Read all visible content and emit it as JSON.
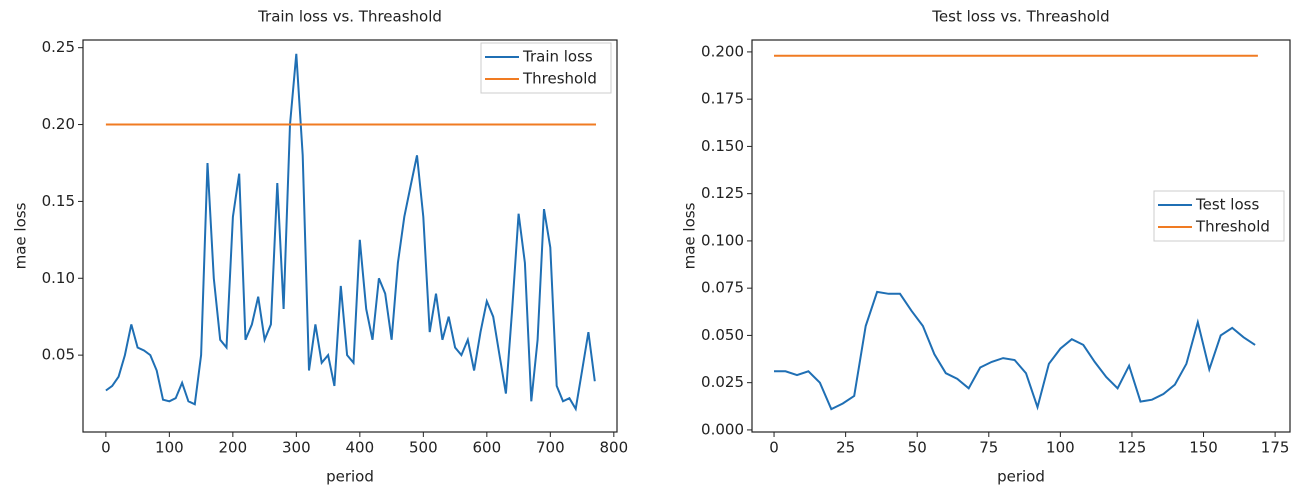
{
  "chart_data": [
    {
      "type": "line",
      "title": "Train loss vs. Threashold",
      "xlabel": "period",
      "ylabel": "mae loss",
      "legend": "upper right",
      "xlim": [
        -36,
        805
      ],
      "ylim": [
        0.0,
        0.255
      ],
      "xticks": [
        0,
        100,
        200,
        300,
        400,
        500,
        600,
        700,
        800
      ],
      "yticks": [
        {
          "value": 0.05,
          "label": "0.05"
        },
        {
          "value": 0.1,
          "label": "0.10"
        },
        {
          "value": 0.15,
          "label": "0.15"
        },
        {
          "value": 0.2,
          "label": "0.20"
        },
        {
          "value": 0.25,
          "label": "0.25"
        }
      ],
      "series": [
        {
          "name": "Train loss",
          "color": "#1f6fb4",
          "x": [
            0,
            10,
            20,
            30,
            40,
            50,
            60,
            70,
            80,
            90,
            100,
            110,
            120,
            130,
            140,
            150,
            160,
            170,
            180,
            190,
            200,
            210,
            220,
            230,
            240,
            250,
            260,
            270,
            280,
            290,
            300,
            310,
            320,
            330,
            340,
            350,
            360,
            370,
            380,
            390,
            400,
            410,
            420,
            430,
            440,
            450,
            460,
            470,
            480,
            490,
            500,
            510,
            520,
            530,
            540,
            550,
            560,
            570,
            580,
            590,
            600,
            610,
            620,
            630,
            640,
            650,
            660,
            670,
            680,
            690,
            700,
            710,
            720,
            730,
            740,
            750,
            760,
            770
          ],
          "values": [
            0.027,
            0.03,
            0.036,
            0.05,
            0.07,
            0.055,
            0.053,
            0.05,
            0.04,
            0.021,
            0.02,
            0.022,
            0.032,
            0.02,
            0.018,
            0.05,
            0.175,
            0.1,
            0.06,
            0.055,
            0.14,
            0.168,
            0.06,
            0.07,
            0.088,
            0.06,
            0.07,
            0.162,
            0.08,
            0.2,
            0.246,
            0.18,
            0.04,
            0.07,
            0.045,
            0.05,
            0.03,
            0.095,
            0.05,
            0.045,
            0.125,
            0.08,
            0.06,
            0.1,
            0.09,
            0.06,
            0.11,
            0.14,
            0.16,
            0.18,
            0.14,
            0.065,
            0.09,
            0.06,
            0.075,
            0.055,
            0.05,
            0.06,
            0.04,
            0.065,
            0.085,
            0.075,
            0.05,
            0.025,
            0.08,
            0.142,
            0.11,
            0.02,
            0.06,
            0.145,
            0.12,
            0.03,
            0.02,
            0.022,
            0.015,
            0.04,
            0.065,
            0.033
          ]
        },
        {
          "name": "Threshold",
          "color": "#f07b22",
          "x": [
            0,
            772
          ],
          "values": [
            0.2,
            0.2
          ]
        }
      ]
    },
    {
      "type": "line",
      "title": "Test loss vs. Threashold",
      "xlabel": "period",
      "ylabel": "mae loss",
      "legend": "center right",
      "xlim": [
        -7.7,
        180.2
      ],
      "ylim": [
        -0.0011,
        0.2063
      ],
      "xticks": [
        0,
        25,
        50,
        75,
        100,
        125,
        150,
        175
      ],
      "yticks": [
        {
          "value": 0,
          "label": "0.000"
        },
        {
          "value": 0.025,
          "label": "0.025"
        },
        {
          "value": 0.05,
          "label": "0.050"
        },
        {
          "value": 0.075,
          "label": "0.075"
        },
        {
          "value": 0.1,
          "label": "0.100"
        },
        {
          "value": 0.125,
          "label": "0.125"
        },
        {
          "value": 0.15,
          "label": "0.150"
        },
        {
          "value": 0.175,
          "label": "0.175"
        },
        {
          "value": 0.2,
          "label": "0.200"
        }
      ],
      "series": [
        {
          "name": "Test loss",
          "color": "#1f6fb4",
          "x": [
            0,
            4,
            8,
            12,
            16,
            20,
            24,
            28,
            32,
            36,
            40,
            44,
            48,
            52,
            56,
            60,
            64,
            68,
            72,
            76,
            80,
            84,
            88,
            92,
            96,
            100,
            104,
            108,
            112,
            116,
            120,
            124,
            128,
            132,
            136,
            140,
            144,
            148,
            152,
            156,
            160,
            164,
            168
          ],
          "values": [
            0.031,
            0.031,
            0.029,
            0.031,
            0.025,
            0.011,
            0.014,
            0.018,
            0.055,
            0.073,
            0.072,
            0.072,
            0.063,
            0.055,
            0.04,
            0.03,
            0.027,
            0.022,
            0.033,
            0.036,
            0.038,
            0.037,
            0.03,
            0.012,
            0.035,
            0.043,
            0.048,
            0.045,
            0.036,
            0.028,
            0.022,
            0.034,
            0.015,
            0.016,
            0.019,
            0.024,
            0.035,
            0.057,
            0.032,
            0.05,
            0.054,
            0.049,
            0.045
          ]
        },
        {
          "name": "Threshold",
          "color": "#f07b22",
          "x": [
            0,
            169
          ],
          "values": [
            0.198,
            0.198
          ]
        }
      ]
    }
  ]
}
